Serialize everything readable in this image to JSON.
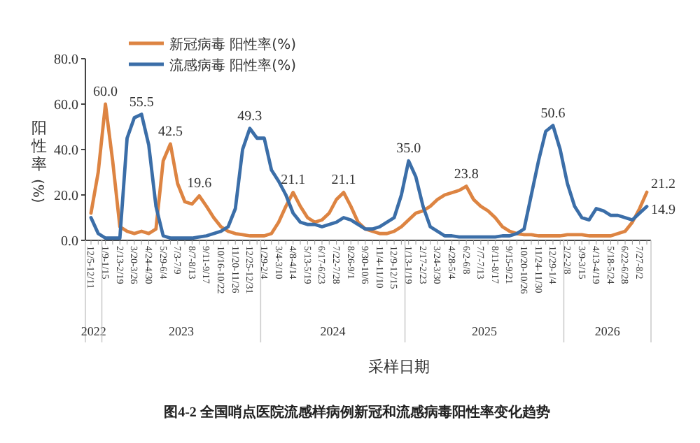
{
  "chart_data": {
    "type": "line",
    "title": "图4-2 全国哨点医院流感样病例新冠和流感病毒阳性率变化趋势",
    "xlabel": "采样日期",
    "ylabel": "阳性率(%)",
    "categories": [
      "12/5-12/11",
      null,
      "1/9-1/15",
      null,
      "2/13-2/19",
      null,
      "3/20-3/26",
      null,
      "4/24-4/30",
      null,
      "5/29-6/4",
      null,
      "7/3-7/9",
      null,
      "8/7-8/13",
      null,
      "9/11-9/17",
      null,
      "10/16-10/22",
      null,
      "11/20-11/26",
      null,
      "12/25-12/31",
      null,
      "1/29-2/4",
      null,
      "3/4-3/10",
      null,
      "4/8-4/14",
      null,
      "5/13-5/19",
      null,
      "6/17-6/23",
      null,
      "7/22-7/28",
      null,
      "8/26-9/1",
      null,
      "9/30-10/6",
      null,
      "11/4-11/10",
      null,
      "12/9-12/15",
      null,
      "1/13-1/19",
      null,
      "2/17-2/23",
      null,
      "3/24-3/30",
      null,
      "4/28-5/4",
      null,
      "6/2-6/8",
      null,
      "7/7-7/13",
      null,
      "8/11-8/17",
      null,
      "9/15-9/21",
      null,
      "10/20-10/26",
      null,
      "11/24-11/30",
      null,
      "12/29-1/4",
      null,
      "2/2-2/8",
      null,
      "3/9-3/15",
      null,
      "4/13-4/19",
      null,
      "5/18-5/24",
      null,
      "6/22-6/28",
      null,
      "7/27-8/2",
      null
    ],
    "series": [
      {
        "name": "新冠病毒 阳性率(%)",
        "color": "#dd8442",
        "values": [
          12,
          30,
          60.0,
          35,
          6,
          4,
          3,
          4,
          3,
          5,
          35,
          42.5,
          25,
          17,
          16,
          19.6,
          15,
          10,
          6,
          4,
          3,
          2.5,
          2,
          2,
          2,
          3,
          8,
          15,
          21.1,
          15,
          10,
          8,
          9,
          12,
          18,
          21.1,
          15,
          8,
          5,
          4,
          3,
          3,
          4,
          6,
          9,
          12,
          13,
          15,
          18,
          20,
          21,
          22,
          23.8,
          18,
          15,
          13,
          10,
          6,
          4,
          3,
          2.5,
          2.5,
          2,
          2,
          2,
          2,
          2.5,
          2.5,
          2.5,
          2,
          2,
          2,
          2,
          3,
          4,
          8,
          14,
          21.2
        ],
        "value_labels": [
          null,
          null,
          "60.0",
          null,
          null,
          null,
          null,
          null,
          null,
          null,
          null,
          "42.5",
          null,
          null,
          null,
          "19.6",
          null,
          null,
          null,
          null,
          null,
          null,
          null,
          null,
          null,
          null,
          null,
          null,
          "21.1",
          null,
          null,
          null,
          null,
          null,
          null,
          "21.1",
          null,
          null,
          null,
          null,
          null,
          null,
          null,
          null,
          null,
          null,
          null,
          null,
          null,
          null,
          null,
          null,
          "23.8",
          null,
          null,
          null,
          null,
          null,
          null,
          null,
          null,
          null,
          null,
          null,
          null,
          null,
          null,
          null,
          null,
          null,
          null,
          null,
          null,
          null,
          null,
          null,
          null,
          "21.2"
        ]
      },
      {
        "name": "流感病毒 阳性率(%)",
        "color": "#3b6ea8",
        "values": [
          10,
          3,
          1,
          1,
          1,
          45,
          54,
          55.5,
          42,
          15,
          2,
          1,
          1,
          1,
          1,
          1.5,
          2,
          3,
          4,
          6,
          14,
          40,
          49.3,
          45,
          45,
          31,
          26,
          20,
          12,
          8,
          7,
          7,
          6,
          7,
          8,
          10,
          9,
          7,
          5,
          5,
          6,
          8,
          10,
          20,
          35.0,
          28,
          15,
          6,
          4,
          2,
          2,
          1.5,
          1.5,
          1.5,
          1.5,
          1.5,
          1.5,
          2,
          2,
          3,
          5,
          20,
          35,
          48,
          50.6,
          40,
          25,
          15,
          10,
          9,
          14,
          13,
          11,
          11,
          10,
          9,
          12,
          14.9
        ],
        "value_labels": [
          null,
          null,
          null,
          null,
          null,
          null,
          null,
          "55.5",
          null,
          null,
          null,
          null,
          null,
          null,
          null,
          null,
          null,
          null,
          null,
          null,
          null,
          null,
          "49.3",
          null,
          null,
          null,
          null,
          null,
          null,
          null,
          null,
          null,
          null,
          null,
          null,
          null,
          null,
          null,
          null,
          null,
          null,
          null,
          null,
          null,
          "35.0",
          null,
          null,
          null,
          null,
          null,
          null,
          null,
          null,
          null,
          null,
          null,
          null,
          null,
          null,
          null,
          null,
          null,
          null,
          null,
          "50.6",
          null,
          null,
          null,
          null,
          null,
          null,
          null,
          null,
          null,
          null,
          null,
          null,
          "14.9"
        ]
      }
    ],
    "ylim": [
      0,
      80
    ],
    "yticks": [
      {
        "value": 0,
        "label": "0.0"
      },
      {
        "value": 20,
        "label": "20.0"
      },
      {
        "value": 40,
        "label": "40.0"
      },
      {
        "value": 60,
        "label": "60.0"
      },
      {
        "value": 80,
        "label": "80.0"
      }
    ],
    "annotations": [
      "2022",
      "2023",
      "2024",
      "2025",
      "2026"
    ],
    "legend": "top left",
    "grid": false,
    "marker": "none",
    "line_style": "solid"
  }
}
